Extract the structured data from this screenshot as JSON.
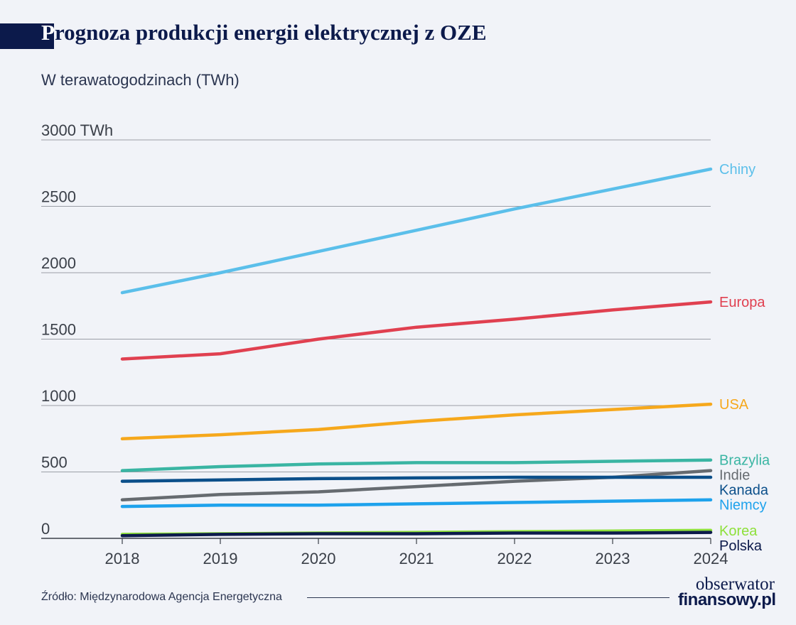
{
  "header": {
    "title_first": "P",
    "title_rest": "rognoza produkcji energii elektrycznej z OZE",
    "subtitle": "W terawatogodzinach (TWh)"
  },
  "footer": {
    "source": "Źródło: Międzynarodowa Agencja Energetyczna",
    "logo_line1": "obserwator",
    "logo_line2": "finansowy.pl"
  },
  "chart_data": {
    "type": "line",
    "title": "Prognoza produkcji energii elektrycznej z OZE",
    "subtitle": "W terawatogodzinach (TWh)",
    "x": [
      "2018",
      "2019",
      "2020",
      "2021",
      "2022",
      "2023",
      "2024"
    ],
    "ylim": [
      0,
      3000
    ],
    "yticks": [
      0,
      500,
      1000,
      1500,
      2000,
      2500,
      3000
    ],
    "ytick_labels": [
      "0",
      "500",
      "1000",
      "1500",
      "2000",
      "2500",
      "3000 TWh"
    ],
    "grid": true,
    "legend": "right, labels at line ends",
    "series": [
      {
        "name": "Chiny",
        "color": "#5bbfea",
        "values": [
          1850,
          2000,
          2160,
          2320,
          2480,
          2630,
          2780
        ]
      },
      {
        "name": "Europa",
        "color": "#e04050",
        "values": [
          1350,
          1390,
          1500,
          1590,
          1650,
          1720,
          1780
        ]
      },
      {
        "name": "USA",
        "color": "#f6a81c",
        "values": [
          750,
          780,
          820,
          880,
          930,
          970,
          1010
        ]
      },
      {
        "name": "Brazylia",
        "color": "#3ab5a3",
        "values": [
          510,
          540,
          560,
          570,
          570,
          580,
          590
        ]
      },
      {
        "name": "Indie",
        "color": "#666b70",
        "values": [
          290,
          330,
          350,
          390,
          430,
          460,
          510
        ]
      },
      {
        "name": "Kanada",
        "color": "#0b4f8a",
        "values": [
          430,
          440,
          450,
          455,
          460,
          460,
          460
        ]
      },
      {
        "name": "Niemcy",
        "color": "#1ea2ec",
        "values": [
          240,
          250,
          250,
          260,
          270,
          280,
          290
        ]
      },
      {
        "name": "Korea",
        "color": "#8ee03a",
        "values": [
          30,
          35,
          40,
          45,
          50,
          55,
          60
        ]
      },
      {
        "name": "Polska",
        "color": "#0c1a4b",
        "values": [
          20,
          30,
          35,
          35,
          40,
          40,
          45
        ]
      }
    ]
  }
}
